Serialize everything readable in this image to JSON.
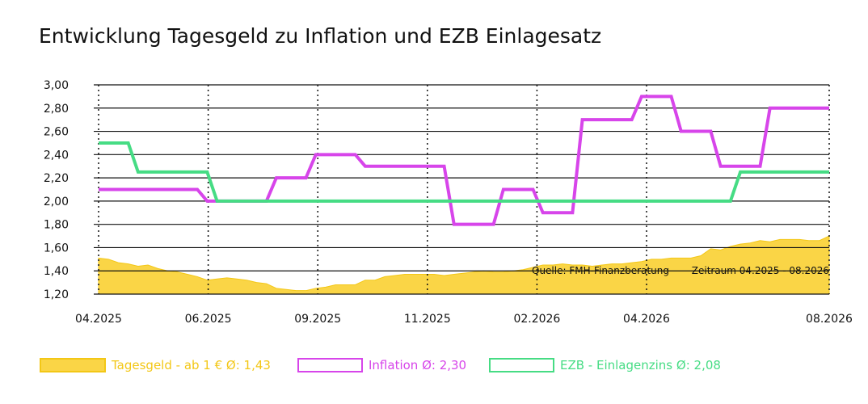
{
  "chart_data": {
    "type": "line",
    "title": "Entwicklung Tagesgeld zu Inflation und EZB Einlagesatz",
    "xlabel": "",
    "ylabel": "",
    "ylim": [
      1.2,
      3.0
    ],
    "y_ticks": [
      "3,00",
      "2,80",
      "2,60",
      "2,40",
      "2,20",
      "2,00",
      "1,80",
      "1,60",
      "1,40",
      "1,20"
    ],
    "x_tick_labels": [
      "04.2025",
      "06.2025",
      "09.2025",
      "11.2025",
      "02.2026",
      "04.2026",
      "08.2026"
    ],
    "grid": true,
    "legend_position": "bottom",
    "annotations": {
      "source": "Quelle: FMH-Finanzberatung",
      "period": "Zeitraum 04.2025 - 08.2026"
    },
    "series": [
      {
        "name": "Tagesgeld - ab 1 € Ø: 1,43",
        "type": "area",
        "color": "#fad546",
        "edge_color": "#f3c716",
        "values": [
          1.51,
          1.5,
          1.47,
          1.46,
          1.44,
          1.45,
          1.42,
          1.4,
          1.39,
          1.37,
          1.35,
          1.32,
          1.33,
          1.34,
          1.33,
          1.32,
          1.3,
          1.29,
          1.25,
          1.24,
          1.23,
          1.23,
          1.25,
          1.26,
          1.28,
          1.28,
          1.28,
          1.32,
          1.32,
          1.35,
          1.36,
          1.37,
          1.37,
          1.37,
          1.37,
          1.36,
          1.37,
          1.38,
          1.39,
          1.4,
          1.39,
          1.39,
          1.4,
          1.41,
          1.43,
          1.45,
          1.45,
          1.46,
          1.45,
          1.45,
          1.44,
          1.45,
          1.46,
          1.46,
          1.47,
          1.48,
          1.5,
          1.5,
          1.51,
          1.51,
          1.51,
          1.53,
          1.59,
          1.58,
          1.61,
          1.63,
          1.64,
          1.66,
          1.65,
          1.67,
          1.67,
          1.67,
          1.66,
          1.66,
          1.7
        ]
      },
      {
        "name": "Inflation Ø: 2,30",
        "type": "line",
        "color": "#d745ea",
        "values": [
          2.1,
          2.1,
          2.1,
          2.1,
          2.1,
          2.1,
          2.1,
          2.1,
          2.1,
          2.1,
          2.1,
          2.0,
          2.0,
          2.0,
          2.0,
          2.0,
          2.0,
          2.0,
          2.2,
          2.2,
          2.2,
          2.2,
          2.4,
          2.4,
          2.4,
          2.4,
          2.4,
          2.3,
          2.3,
          2.3,
          2.3,
          2.3,
          2.3,
          2.3,
          2.3,
          2.3,
          1.8,
          1.8,
          1.8,
          1.8,
          1.8,
          2.1,
          2.1,
          2.1,
          2.1,
          1.9,
          1.9,
          1.9,
          1.9,
          2.7,
          2.7,
          2.7,
          2.7,
          2.7,
          2.7,
          2.9,
          2.9,
          2.9,
          2.9,
          2.6,
          2.6,
          2.6,
          2.6,
          2.3,
          2.3,
          2.3,
          2.3,
          2.3,
          2.8,
          2.8,
          2.8,
          2.8,
          2.8,
          2.8,
          2.8
        ]
      },
      {
        "name": "EZB - Einlagenzins Ø: 2,08",
        "type": "line",
        "color": "#46dc84",
        "values": [
          2.5,
          2.5,
          2.5,
          2.5,
          2.25,
          2.25,
          2.25,
          2.25,
          2.25,
          2.25,
          2.25,
          2.25,
          2.0,
          2.0,
          2.0,
          2.0,
          2.0,
          2.0,
          2.0,
          2.0,
          2.0,
          2.0,
          2.0,
          2.0,
          2.0,
          2.0,
          2.0,
          2.0,
          2.0,
          2.0,
          2.0,
          2.0,
          2.0,
          2.0,
          2.0,
          2.0,
          2.0,
          2.0,
          2.0,
          2.0,
          2.0,
          2.0,
          2.0,
          2.0,
          2.0,
          2.0,
          2.0,
          2.0,
          2.0,
          2.0,
          2.0,
          2.0,
          2.0,
          2.0,
          2.0,
          2.0,
          2.0,
          2.0,
          2.0,
          2.0,
          2.0,
          2.0,
          2.0,
          2.0,
          2.0,
          2.25,
          2.25,
          2.25,
          2.25,
          2.25,
          2.25,
          2.25,
          2.25,
          2.25,
          2.25
        ]
      }
    ]
  }
}
